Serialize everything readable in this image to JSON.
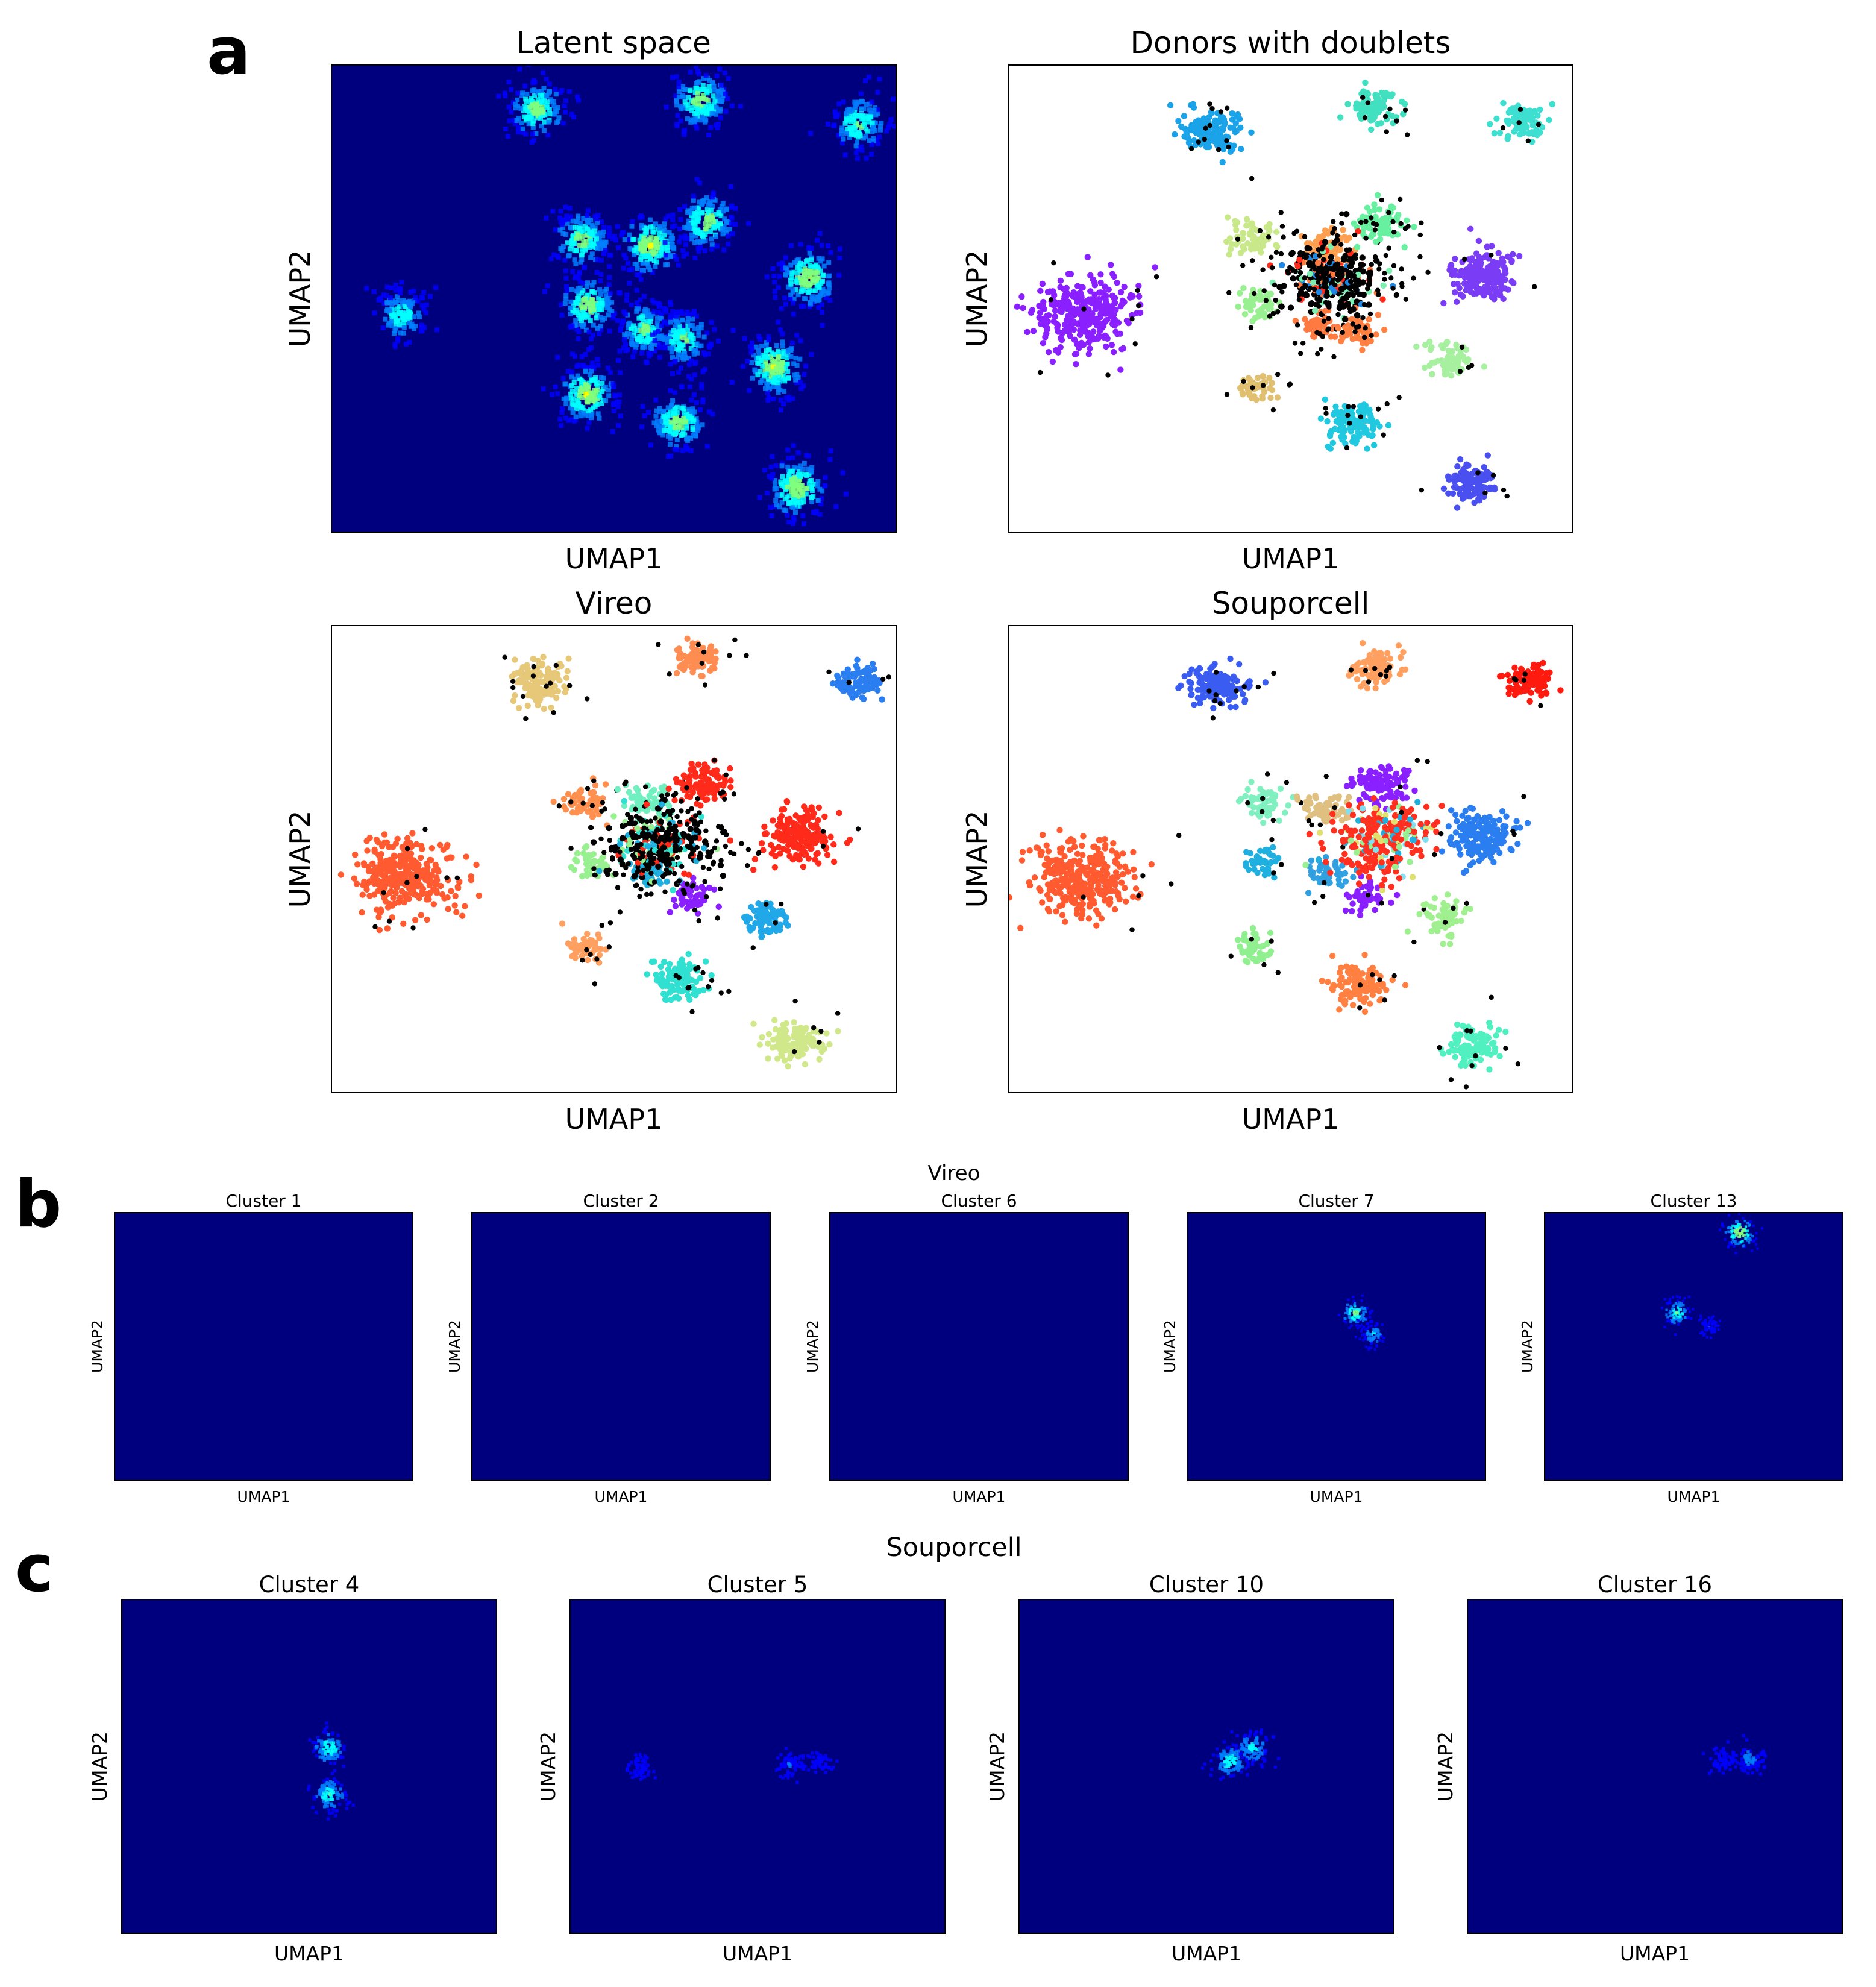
{
  "panel_letters": {
    "a": "a",
    "b": "b",
    "c": "c"
  },
  "colors": {
    "heatmap_bg": "#00007f",
    "doublet": "#000000",
    "jet": [
      "#00007f",
      "#0000ff",
      "#007fff",
      "#00ffff",
      "#7fff7f",
      "#ffff00",
      "#ff7f00",
      "#ff0000"
    ]
  },
  "chart_data": [
    {
      "id": "latent",
      "type": "heatmap",
      "panel": "a",
      "title": "Latent space",
      "xlabel": "UMAP1",
      "ylabel": "UMAP2",
      "xlim": [
        0,
        100
      ],
      "ylim": [
        0,
        100
      ],
      "grid": false,
      "legend": "none",
      "hotspots": [
        {
          "x": 36,
          "y": 91,
          "intensity": 0.5
        },
        {
          "x": 65,
          "y": 93,
          "intensity": 0.5
        },
        {
          "x": 93,
          "y": 88,
          "intensity": 0.45
        },
        {
          "x": 44,
          "y": 63,
          "intensity": 0.5
        },
        {
          "x": 56,
          "y": 62,
          "intensity": 0.55
        },
        {
          "x": 66,
          "y": 67,
          "intensity": 0.5
        },
        {
          "x": 84,
          "y": 55,
          "intensity": 0.55
        },
        {
          "x": 12,
          "y": 47,
          "intensity": 0.4
        },
        {
          "x": 45,
          "y": 49,
          "intensity": 0.5
        },
        {
          "x": 55,
          "y": 44,
          "intensity": 0.45
        },
        {
          "x": 62,
          "y": 42,
          "intensity": 0.45
        },
        {
          "x": 78,
          "y": 36,
          "intensity": 0.55
        },
        {
          "x": 45,
          "y": 30,
          "intensity": 0.55
        },
        {
          "x": 61,
          "y": 24,
          "intensity": 0.5
        },
        {
          "x": 82,
          "y": 10,
          "intensity": 0.55
        }
      ]
    },
    {
      "id": "donors",
      "type": "scatter",
      "panel": "a",
      "title": "Donors with doublets",
      "xlabel": "UMAP1",
      "ylabel": "UMAP2",
      "xlim": [
        0,
        100
      ],
      "ylim": [
        0,
        100
      ],
      "grid": false,
      "legend": "none",
      "clusters": [
        {
          "x": 36,
          "y": 86,
          "size": 4.5,
          "n": 130,
          "color": "#1aa3e8",
          "black": 0.1
        },
        {
          "x": 65,
          "y": 91,
          "size": 3.5,
          "n": 90,
          "color": "#40e0c0",
          "black": 0.1
        },
        {
          "x": 91,
          "y": 88,
          "size": 3.5,
          "n": 90,
          "color": "#3de0d0",
          "black": 0.05
        },
        {
          "x": 43,
          "y": 63,
          "size": 3.5,
          "n": 60,
          "color": "#c8e88a",
          "black": 0.15
        },
        {
          "x": 56,
          "y": 61,
          "size": 3.5,
          "n": 60,
          "color": "#ffa050",
          "black": 0.15
        },
        {
          "x": 66,
          "y": 66,
          "size": 3.5,
          "n": 80,
          "color": "#66f0a0",
          "black": 0.15
        },
        {
          "x": 84,
          "y": 55,
          "size": 5.0,
          "n": 170,
          "color": "#7b3cf5",
          "black": 0.02
        },
        {
          "x": 13,
          "y": 47,
          "size": 7.5,
          "n": 320,
          "color": "#8a1fff",
          "black": 0.03
        },
        {
          "x": 44,
          "y": 49,
          "size": 3.0,
          "n": 50,
          "color": "#99f090",
          "black": 0.15
        },
        {
          "x": 55,
          "y": 44,
          "size": 3.0,
          "n": 50,
          "color": "#ff7a40",
          "black": 0.15
        },
        {
          "x": 62,
          "y": 43,
          "size": 3.0,
          "n": 50,
          "color": "#ff8040",
          "black": 0.15
        },
        {
          "x": 78,
          "y": 37,
          "size": 3.5,
          "n": 70,
          "color": "#a6f0a0",
          "black": 0.05
        },
        {
          "x": 44,
          "y": 31,
          "size": 3.0,
          "n": 50,
          "color": "#e0c070",
          "black": 0.15
        },
        {
          "x": 61,
          "y": 24,
          "size": 4.0,
          "n": 120,
          "color": "#20c8e0",
          "black": 0.1
        },
        {
          "x": 82,
          "y": 11,
          "size": 4.0,
          "n": 120,
          "color": "#4a50f0",
          "black": 0.05
        },
        {
          "x": 57,
          "y": 54,
          "size": 6.5,
          "n": 260,
          "color": "#000000",
          "black": 0.55,
          "mix": [
            "#ff2a1a",
            "#1e88e5",
            "#7cf0b0",
            "#ff7a40"
          ]
        }
      ]
    },
    {
      "id": "vireo",
      "type": "scatter",
      "panel": "a",
      "title": "Vireo",
      "xlabel": "UMAP1",
      "ylabel": "UMAP2",
      "xlim": [
        0,
        100
      ],
      "ylim": [
        0,
        100
      ],
      "grid": false,
      "legend": "none",
      "clusters": [
        {
          "x": 37,
          "y": 88,
          "size": 4.5,
          "n": 130,
          "color": "#e6c878",
          "black": 0.1
        },
        {
          "x": 65,
          "y": 93,
          "size": 3.5,
          "n": 90,
          "color": "#ff8c50",
          "black": 0.1
        },
        {
          "x": 93,
          "y": 88,
          "size": 3.5,
          "n": 90,
          "color": "#2a7ef0",
          "black": 0.05
        },
        {
          "x": 45,
          "y": 62,
          "size": 3.5,
          "n": 60,
          "color": "#ff9050",
          "black": 0.15
        },
        {
          "x": 56,
          "y": 62,
          "size": 3.5,
          "n": 60,
          "color": "#70f0c0",
          "black": 0.15
        },
        {
          "x": 66,
          "y": 66,
          "size": 4.0,
          "n": 100,
          "color": "#ff2a1a",
          "black": 0.05
        },
        {
          "x": 83,
          "y": 55,
          "size": 5.0,
          "n": 170,
          "color": "#ff2a1a",
          "black": 0.02
        },
        {
          "x": 13,
          "y": 46,
          "size": 7.5,
          "n": 320,
          "color": "#ff5a30",
          "black": 0.03
        },
        {
          "x": 46,
          "y": 49,
          "size": 3.0,
          "n": 50,
          "color": "#99f090",
          "black": 0.15
        },
        {
          "x": 56,
          "y": 47,
          "size": 3.0,
          "n": 50,
          "color": "#20b0e0",
          "black": 0.15
        },
        {
          "x": 64,
          "y": 42,
          "size": 3.0,
          "n": 50,
          "color": "#8a20ff",
          "black": 0.1
        },
        {
          "x": 77,
          "y": 37,
          "size": 3.5,
          "n": 70,
          "color": "#20a8e8",
          "black": 0.05
        },
        {
          "x": 45,
          "y": 31,
          "size": 3.0,
          "n": 50,
          "color": "#ffa060",
          "black": 0.15
        },
        {
          "x": 62,
          "y": 24,
          "size": 4.0,
          "n": 120,
          "color": "#30e0d0",
          "black": 0.1
        },
        {
          "x": 82,
          "y": 11,
          "size": 4.0,
          "n": 120,
          "color": "#d0e88a",
          "black": 0.05
        },
        {
          "x": 58,
          "y": 53,
          "size": 6.5,
          "n": 260,
          "color": "#000000",
          "black": 0.6,
          "mix": [
            "#ff2a1a",
            "#30e0d0",
            "#99f090",
            "#20b0e0"
          ]
        }
      ]
    },
    {
      "id": "souporcell",
      "type": "scatter",
      "panel": "a",
      "title": "Souporcell",
      "xlabel": "UMAP1",
      "ylabel": "UMAP2",
      "xlim": [
        0,
        100
      ],
      "ylim": [
        0,
        100
      ],
      "grid": false,
      "legend": "none",
      "clusters": [
        {
          "x": 37,
          "y": 87,
          "size": 4.5,
          "n": 130,
          "color": "#3a5cf0",
          "black": 0.08
        },
        {
          "x": 65,
          "y": 91,
          "size": 3.5,
          "n": 90,
          "color": "#ffa060",
          "black": 0.1
        },
        {
          "x": 92,
          "y": 88,
          "size": 3.5,
          "n": 90,
          "color": "#ff1a10",
          "black": 0.05
        },
        {
          "x": 45,
          "y": 62,
          "size": 3.5,
          "n": 60,
          "color": "#80f0c0",
          "black": 0.1
        },
        {
          "x": 56,
          "y": 61,
          "size": 3.5,
          "n": 60,
          "color": "#e0c080",
          "black": 0.1
        },
        {
          "x": 66,
          "y": 66,
          "size": 4.0,
          "n": 100,
          "color": "#8a20ff",
          "black": 0.03
        },
        {
          "x": 84,
          "y": 55,
          "size": 5.0,
          "n": 170,
          "color": "#2a7ef0",
          "black": 0.02
        },
        {
          "x": 13,
          "y": 46,
          "size": 7.5,
          "n": 320,
          "color": "#ff5a30",
          "black": 0.02
        },
        {
          "x": 45,
          "y": 49,
          "size": 3.0,
          "n": 50,
          "color": "#20b0e0",
          "black": 0.05
        },
        {
          "x": 56,
          "y": 47,
          "size": 3.0,
          "n": 50,
          "color": "#30a0e0",
          "black": 0.05
        },
        {
          "x": 64,
          "y": 42,
          "size": 3.0,
          "n": 50,
          "color": "#8a20ff",
          "black": 0.05
        },
        {
          "x": 77,
          "y": 37,
          "size": 3.5,
          "n": 70,
          "color": "#a0f090",
          "black": 0.05
        },
        {
          "x": 44,
          "y": 31,
          "size": 3.0,
          "n": 50,
          "color": "#90f090",
          "black": 0.1
        },
        {
          "x": 62,
          "y": 23,
          "size": 4.0,
          "n": 120,
          "color": "#ff8040",
          "black": 0.05
        },
        {
          "x": 82,
          "y": 10,
          "size": 4.0,
          "n": 120,
          "color": "#50f0c0",
          "black": 0.08
        },
        {
          "x": 66,
          "y": 54,
          "size": 7.0,
          "n": 300,
          "color": "#ff3020",
          "black": 0.02,
          "mix": [
            "#ff3020",
            "#80e0f0",
            "#e0e070",
            "#20b0e0",
            "#99f090"
          ]
        }
      ]
    },
    {
      "id": "vireo_c1",
      "type": "heatmap",
      "panel": "b",
      "group_title": "Vireo",
      "title": "Cluster 1",
      "xlabel": "UMAP1",
      "ylabel": "UMAP2",
      "xlim": [
        0,
        100
      ],
      "ylim": [
        0,
        100
      ],
      "hotspots": []
    },
    {
      "id": "vireo_c2",
      "type": "heatmap",
      "panel": "b",
      "title": "Cluster 2",
      "xlabel": "UMAP1",
      "ylabel": "UMAP2",
      "xlim": [
        0,
        100
      ],
      "ylim": [
        0,
        100
      ],
      "hotspots": []
    },
    {
      "id": "vireo_c6",
      "type": "heatmap",
      "panel": "b",
      "title": "Cluster 6",
      "xlabel": "UMAP1",
      "ylabel": "UMAP2",
      "xlim": [
        0,
        100
      ],
      "ylim": [
        0,
        100
      ],
      "hotspots": []
    },
    {
      "id": "vireo_c7",
      "type": "heatmap",
      "panel": "b",
      "title": "Cluster 7",
      "xlabel": "UMAP1",
      "ylabel": "UMAP2",
      "xlim": [
        0,
        100
      ],
      "ylim": [
        0,
        100
      ],
      "hotspots": [
        {
          "x": 56,
          "y": 63,
          "intensity": 0.45
        },
        {
          "x": 62,
          "y": 55,
          "intensity": 0.3
        }
      ]
    },
    {
      "id": "vireo_c13",
      "type": "heatmap",
      "panel": "b",
      "title": "Cluster 13",
      "xlabel": "UMAP1",
      "ylabel": "UMAP2",
      "xlim": [
        0,
        100
      ],
      "ylim": [
        0,
        100
      ],
      "hotspots": [
        {
          "x": 65,
          "y": 93,
          "intensity": 0.55
        },
        {
          "x": 44,
          "y": 63,
          "intensity": 0.4
        },
        {
          "x": 55,
          "y": 58,
          "intensity": 0.15
        }
      ]
    },
    {
      "id": "soup_c4",
      "type": "heatmap",
      "panel": "c",
      "group_title": "Souporcell",
      "title": "Cluster 4",
      "xlabel": "UMAP1",
      "ylabel": "UMAP2",
      "xlim": [
        0,
        100
      ],
      "ylim": [
        0,
        100
      ],
      "hotspots": [
        {
          "x": 55,
          "y": 56,
          "intensity": 0.4
        },
        {
          "x": 55,
          "y": 42,
          "intensity": 0.4
        }
      ]
    },
    {
      "id": "soup_c5",
      "type": "heatmap",
      "panel": "c",
      "title": "Cluster 5",
      "xlabel": "UMAP1",
      "ylabel": "UMAP2",
      "xlim": [
        0,
        100
      ],
      "ylim": [
        0,
        100
      ],
      "hotspots": [
        {
          "x": 18,
          "y": 50,
          "intensity": 0.12
        },
        {
          "x": 58,
          "y": 51,
          "intensity": 0.15
        },
        {
          "x": 66,
          "y": 52,
          "intensity": 0.1
        }
      ]
    },
    {
      "id": "soup_c10",
      "type": "heatmap",
      "panel": "c",
      "title": "Cluster 10",
      "xlabel": "UMAP1",
      "ylabel": "UMAP2",
      "xlim": [
        0,
        100
      ],
      "ylim": [
        0,
        100
      ],
      "hotspots": [
        {
          "x": 56,
          "y": 52,
          "intensity": 0.4
        },
        {
          "x": 62,
          "y": 56,
          "intensity": 0.35
        }
      ]
    },
    {
      "id": "soup_c16",
      "type": "heatmap",
      "panel": "c",
      "title": "Cluster 16",
      "xlabel": "UMAP1",
      "ylabel": "UMAP2",
      "xlim": [
        0,
        100
      ],
      "ylim": [
        0,
        100
      ],
      "hotspots": [
        {
          "x": 75,
          "y": 53,
          "intensity": 0.22
        },
        {
          "x": 68,
          "y": 52,
          "intensity": 0.12
        }
      ]
    }
  ]
}
